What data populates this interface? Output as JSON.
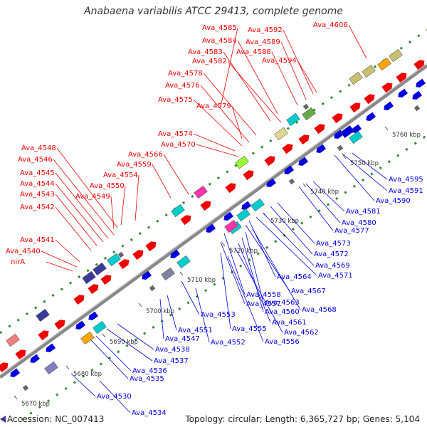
{
  "title": "Anabaena variabilis ATCC 29413, complete genome",
  "footer": {
    "accession": "Accession: NC_007413",
    "topology": "Topology: circular; Length: 6,365,727 bp; Genes: 5,104"
  },
  "colors": {
    "forward": "#ee0000",
    "reverse": "#0000dd",
    "backbone": "#888888",
    "dots": "#2e8b2e"
  },
  "kbp_ticks": [
    "5670 kbp",
    "5680 kbp",
    "5690 kbp",
    "5700 kbp",
    "5710 kbp",
    "5720 kbp",
    "5730 kbp",
    "5740 kbp",
    "5750 kbp",
    "5760 kbp"
  ],
  "forward_labels": [
    "Ava_4585",
    "Ava_4592",
    "Ava_4606",
    "Ava_4584",
    "Ava_4589",
    "Ava_4583",
    "Ava_4588",
    "Ava_4582",
    "Ava_4594",
    "Ava_4578",
    "Ava_4576",
    "Ava_4575",
    "Ava_4579",
    "Ava_4574",
    "Ava_4570",
    "Ava_4548",
    "Ava_4566",
    "Ava_4546",
    "Ava_4559",
    "Ava_4545",
    "Ava_4554",
    "Ava_4544",
    "Ava_4550",
    "Ava_4543",
    "Ava_4549",
    "Ava_4542",
    "Ava_4541",
    "Ava_4540",
    "nirA"
  ],
  "reverse_labels": [
    "Ava_4595",
    "Ava_4591",
    "Ava_4590",
    "Ava_4581",
    "Ava_4580",
    "Ava_4577",
    "Ava_4573",
    "Ava_4572",
    "Ava_4569",
    "Ava_4571",
    "Ava_4564",
    "Ava_4567",
    "Ava_4558",
    "Ava_4563",
    "Ava_4568",
    "Ava_4557",
    "Ava_4560",
    "Ava_4553",
    "Ava_4561",
    "Ava_4555",
    "Ava_4562",
    "Ava_4551",
    "Ava_4556",
    "Ava_4552",
    "Ava_4547",
    "Ava_4538",
    "Ava_4537",
    "Ava_4536",
    "Ava_4535",
    "Ava_4530",
    "Ava_4534"
  ]
}
